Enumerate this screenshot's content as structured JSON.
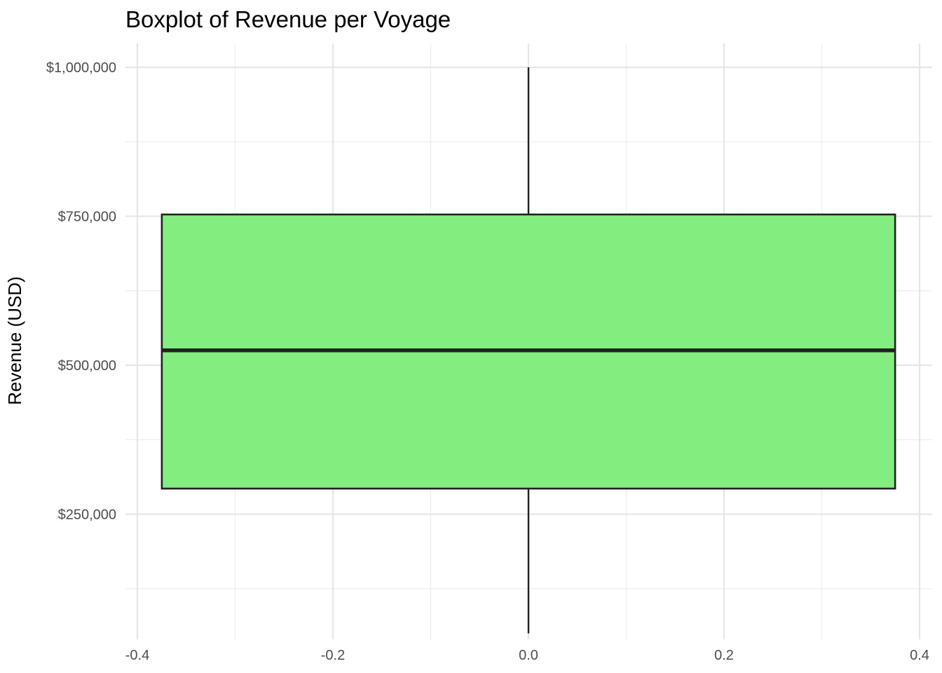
{
  "chart_data": {
    "type": "boxplot",
    "title": "Boxplot of Revenue per Voyage",
    "xlabel": "",
    "ylabel": "Revenue (USD)",
    "xlim": [
      -0.4,
      0.4
    ],
    "ylim": [
      40000,
      1040000
    ],
    "x_ticks": [
      -0.4,
      -0.2,
      0.0,
      0.2,
      0.4
    ],
    "x_tick_labels": [
      "-0.4",
      "-0.2",
      "0.0",
      "0.2",
      "0.4"
    ],
    "y_ticks": [
      250000,
      500000,
      750000,
      1000000
    ],
    "y_tick_labels": [
      "$250,000",
      "$500,000",
      "$750,000",
      "$1,000,000"
    ],
    "grid": true,
    "legend": "none",
    "box": {
      "x_center": 0.0,
      "x_left": -0.375,
      "x_right": 0.375,
      "whisker_low": 50000,
      "q1": 293000,
      "median": 525000,
      "q3": 753000,
      "whisker_high": 1000000
    },
    "colors": {
      "box_fill": "#83ed7f",
      "box_outline": "#222222",
      "grid": "#e6e6e6"
    }
  }
}
